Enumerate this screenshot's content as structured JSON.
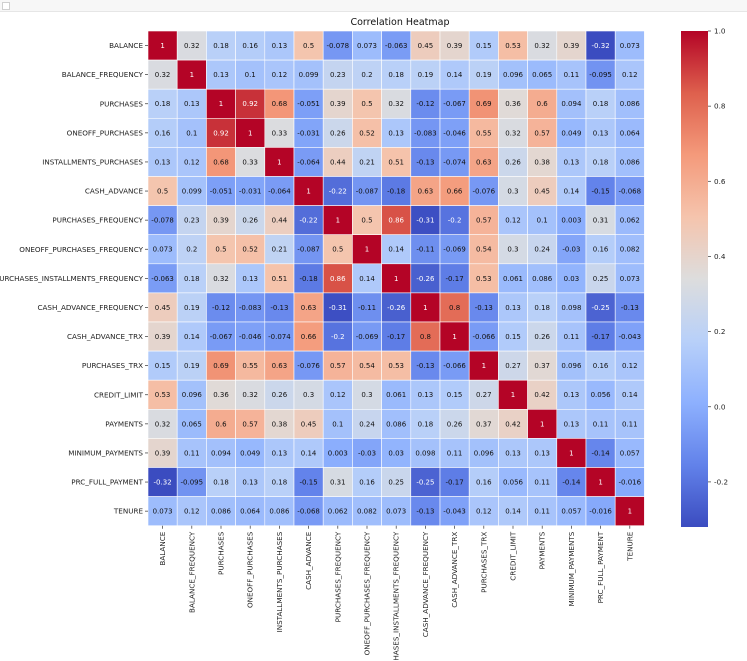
{
  "chart_data": {
    "type": "heatmap",
    "title": "Correlation Heatmap",
    "labels": [
      "BALANCE",
      "BALANCE_FREQUENCY",
      "PURCHASES",
      "ONEOFF_PURCHASES",
      "INSTALLMENTS_PURCHASES",
      "CASH_ADVANCE",
      "PURCHASES_FREQUENCY",
      "ONEOFF_PURCHASES_FREQUENCY",
      "PURCHASES_INSTALLMENTS_FREQUENCY",
      "CASH_ADVANCE_FREQUENCY",
      "CASH_ADVANCE_TRX",
      "PURCHASES_TRX",
      "CREDIT_LIMIT",
      "PAYMENTS",
      "MINIMUM_PAYMENTS",
      "PRC_FULL_PAYMENT",
      "TENURE"
    ],
    "matrix": [
      [
        "1",
        "0.32",
        "0.18",
        "0.16",
        "0.13",
        "0.5",
        "-0.078",
        "0.073",
        "-0.063",
        "0.45",
        "0.39",
        "0.15",
        "0.53",
        "0.32",
        "0.39",
        "-0.32",
        "0.073"
      ],
      [
        "0.32",
        "1",
        "0.13",
        "0.1",
        "0.12",
        "0.099",
        "0.23",
        "0.2",
        "0.18",
        "0.19",
        "0.14",
        "0.19",
        "0.096",
        "0.065",
        "0.11",
        "-0.095",
        "0.12"
      ],
      [
        "0.18",
        "0.13",
        "1",
        "0.92",
        "0.68",
        "-0.051",
        "0.39",
        "0.5",
        "0.32",
        "-0.12",
        "-0.067",
        "0.69",
        "0.36",
        "0.6",
        "0.094",
        "0.18",
        "0.086"
      ],
      [
        "0.16",
        "0.1",
        "0.92",
        "1",
        "0.33",
        "-0.031",
        "0.26",
        "0.52",
        "0.13",
        "-0.083",
        "-0.046",
        "0.55",
        "0.32",
        "0.57",
        "0.049",
        "0.13",
        "0.064"
      ],
      [
        "0.13",
        "0.12",
        "0.68",
        "0.33",
        "1",
        "-0.064",
        "0.44",
        "0.21",
        "0.51",
        "-0.13",
        "-0.074",
        "0.63",
        "0.26",
        "0.38",
        "0.13",
        "0.18",
        "0.086"
      ],
      [
        "0.5",
        "0.099",
        "-0.051",
        "-0.031",
        "-0.064",
        "1",
        "-0.22",
        "-0.087",
        "-0.18",
        "0.63",
        "0.66",
        "-0.076",
        "0.3",
        "0.45",
        "0.14",
        "-0.15",
        "-0.068"
      ],
      [
        "-0.078",
        "0.23",
        "0.39",
        "0.26",
        "0.44",
        "-0.22",
        "1",
        "0.5",
        "0.86",
        "-0.31",
        "-0.2",
        "0.57",
        "0.12",
        "0.1",
        "0.003",
        "0.31",
        "0.062"
      ],
      [
        "0.073",
        "0.2",
        "0.5",
        "0.52",
        "0.21",
        "-0.087",
        "0.5",
        "1",
        "0.14",
        "-0.11",
        "-0.069",
        "0.54",
        "0.3",
        "0.24",
        "-0.03",
        "0.16",
        "0.082"
      ],
      [
        "-0.063",
        "0.18",
        "0.32",
        "0.13",
        "0.51",
        "-0.18",
        "0.86",
        "0.14",
        "1",
        "-0.26",
        "-0.17",
        "0.53",
        "0.061",
        "0.086",
        "0.03",
        "0.25",
        "0.073"
      ],
      [
        "0.45",
        "0.19",
        "-0.12",
        "-0.083",
        "-0.13",
        "0.63",
        "-0.31",
        "-0.11",
        "-0.26",
        "1",
        "0.8",
        "-0.13",
        "0.13",
        "0.18",
        "0.098",
        "-0.25",
        "-0.13"
      ],
      [
        "0.39",
        "0.14",
        "-0.067",
        "-0.046",
        "-0.074",
        "0.66",
        "-0.2",
        "-0.069",
        "-0.17",
        "0.8",
        "1",
        "-0.066",
        "0.15",
        "0.26",
        "0.11",
        "-0.17",
        "-0.043"
      ],
      [
        "0.15",
        "0.19",
        "0.69",
        "0.55",
        "0.63",
        "-0.076",
        "0.57",
        "0.54",
        "0.53",
        "-0.13",
        "-0.066",
        "1",
        "0.27",
        "0.37",
        "0.096",
        "0.16",
        "0.12"
      ],
      [
        "0.53",
        "0.096",
        "0.36",
        "0.32",
        "0.26",
        "0.3",
        "0.12",
        "0.3",
        "0.061",
        "0.13",
        "0.15",
        "0.27",
        "1",
        "0.42",
        "0.13",
        "0.056",
        "0.14"
      ],
      [
        "0.32",
        "0.065",
        "0.6",
        "0.57",
        "0.38",
        "0.45",
        "0.1",
        "0.24",
        "0.086",
        "0.18",
        "0.26",
        "0.37",
        "0.42",
        "1",
        "0.13",
        "0.11",
        "0.11"
      ],
      [
        "0.39",
        "0.11",
        "0.094",
        "0.049",
        "0.13",
        "0.14",
        "0.003",
        "-0.03",
        "0.03",
        "0.098",
        "0.11",
        "0.096",
        "0.13",
        "0.13",
        "1",
        "-0.14",
        "0.057"
      ],
      [
        "-0.32",
        "-0.095",
        "0.18",
        "0.13",
        "0.18",
        "-0.15",
        "0.31",
        "0.16",
        "0.25",
        "-0.25",
        "-0.17",
        "0.16",
        "0.056",
        "0.11",
        "-0.14",
        "1",
        "-0.016"
      ],
      [
        "0.073",
        "0.12",
        "0.086",
        "0.064",
        "0.086",
        "-0.068",
        "0.062",
        "0.082",
        "0.073",
        "-0.13",
        "-0.043",
        "0.12",
        "0.14",
        "0.11",
        "0.057",
        "-0.016",
        "1"
      ]
    ],
    "colorbar": {
      "colormap": "coolwarm",
      "vmin": -0.32,
      "vmax": 1.0,
      "ticks": [
        "1.0",
        "0.8",
        "0.6",
        "0.4",
        "0.2",
        "0.0",
        "-0.2"
      ]
    }
  }
}
